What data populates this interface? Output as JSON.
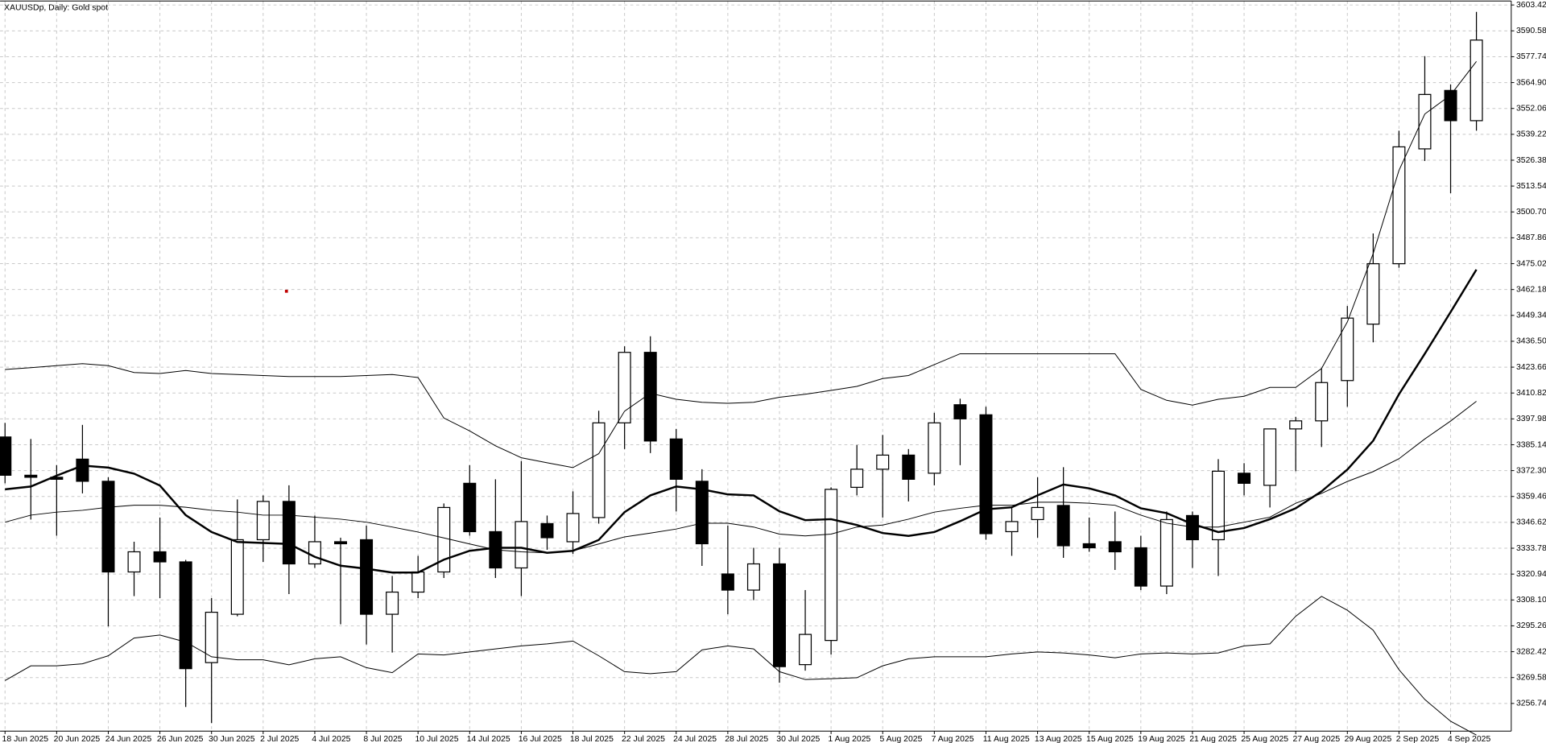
{
  "header": "XAUUSDp, Daily:  Gold spot",
  "chart_data": {
    "type": "candlestick",
    "categories": [
      "18 Jun 2025",
      null,
      "20 Jun 2025",
      null,
      "24 Jun 2025",
      null,
      "26 Jun 2025",
      null,
      "30 Jun 2025",
      null,
      "2 Jul 2025",
      null,
      "4 Jul 2025",
      null,
      "8 Jul 2025",
      null,
      "10 Jul 2025",
      null,
      "14 Jul 2025",
      null,
      "16 Jul 2025",
      null,
      "18 Jul 2025",
      null,
      "22 Jul 2025",
      null,
      "24 Jul 2025",
      null,
      "28 Jul 2025",
      null,
      "30 Jul 2025",
      null,
      "1 Aug 2025",
      null,
      "5 Aug 2025",
      null,
      "7 Aug 2025",
      null,
      "11 Aug 2025",
      null,
      "13 Aug 2025",
      null,
      "15 Aug 2025",
      null,
      "19 Aug 2025",
      null,
      "21 Aug 2025",
      null,
      "25 Aug 2025",
      null,
      "27 Aug 2025",
      null,
      "29 Aug 2025",
      null,
      "2 Sep 2025",
      null,
      "4 Sep 2025",
      null
    ],
    "open": [
      3389,
      3370,
      3369,
      3378,
      3367,
      3322,
      3332,
      3327,
      3277,
      3301,
      3338,
      3357,
      3326,
      3337,
      3338,
      3301,
      3312,
      3322,
      3366,
      3342,
      3324,
      3346,
      3337,
      3349,
      3396,
      3431,
      3388,
      3367,
      3321,
      3313,
      3326,
      3276,
      3288,
      3364,
      3373,
      3380,
      3371,
      3405,
      3400,
      3342,
      3348,
      3355,
      3336,
      3337,
      3334,
      3315,
      3350,
      3338,
      3371,
      3365,
      3393,
      3397,
      3417,
      3445,
      3475,
      3532,
      3561,
      3546
    ],
    "high": [
      3396,
      3388,
      3375,
      3395,
      3369,
      3337,
      3349,
      3328,
      3309,
      3358,
      3360,
      3365,
      3350,
      3339,
      3345,
      3320,
      3330,
      3356,
      3375,
      3368,
      3377,
      3350,
      3362,
      3402,
      3434,
      3439,
      3393,
      3373,
      3345,
      3334,
      3334,
      3313,
      3364,
      3385,
      3390,
      3383,
      3401,
      3408,
      3404,
      3354,
      3369,
      3374,
      3349,
      3352,
      3340,
      3352,
      3352,
      3378,
      3376,
      3393,
      3399,
      3423,
      3454,
      3490,
      3541,
      3578,
      3564,
      3600
    ],
    "low": [
      3366,
      3348,
      3340,
      3361,
      3295,
      3310,
      3309,
      3255,
      3247,
      3300,
      3327,
      3311,
      3324,
      3296,
      3286,
      3282,
      3309,
      3319,
      3340,
      3319,
      3310,
      3333,
      3331,
      3346,
      3383,
      3381,
      3352,
      3325,
      3301,
      3308,
      3267,
      3273,
      3281,
      3360,
      3349,
      3357,
      3365,
      3375,
      3338,
      3330,
      3339,
      3329,
      3332,
      3323,
      3313,
      3311,
      3324,
      3320,
      3360,
      3354,
      3372,
      3384,
      3404,
      3436,
      3473,
      3526,
      3510,
      3541
    ],
    "close": [
      3370,
      3369,
      3368,
      3367,
      3322,
      3332,
      3327,
      3274,
      3302,
      3338,
      3357,
      3326,
      3337,
      3336,
      3301,
      3312,
      3322,
      3354,
      3342,
      3324,
      3347,
      3339,
      3351,
      3396,
      3431,
      3387,
      3368,
      3336,
      3313,
      3326,
      3275,
      3291,
      3363,
      3373,
      3380,
      3368,
      3396,
      3398,
      3341,
      3347,
      3354,
      3335,
      3334,
      3332,
      3315,
      3348,
      3338,
      3372,
      3366,
      3393,
      3397,
      3416,
      3448,
      3475,
      3533,
      3559,
      3546,
      3586
    ],
    "up_color": "#ffffff",
    "down_color": "#000000",
    "outline_color": "#000000",
    "lines": [
      {
        "color": "#000000",
        "values": [
          3422.5,
          3423.4,
          3424.4,
          3425.4,
          3424.4,
          3421.0,
          3420.5,
          3422.0,
          3420.5,
          3420.0,
          3419.5,
          3419.0,
          3419.0,
          3419.0,
          3419.5,
          3420.0,
          3418.5,
          3398.4,
          3392.0,
          3384.6,
          3378.7,
          3376.2,
          3373.8,
          3380.7,
          3401.8,
          3410.7,
          3407.7,
          3406.2,
          3405.7,
          3406.2,
          3408.7,
          3410.2,
          3412.1,
          3414.1,
          3418.0,
          3419.5,
          3424.9,
          3430.3,
          3430.3,
          3430.3,
          3430.3,
          3430.3,
          3430.3,
          3430.3,
          3412.6,
          3407.2,
          3404.8,
          3407.7,
          3409.2,
          3413.6,
          3413.6,
          3423.0,
          3446.1,
          3480.0,
          3521.3,
          3549.3,
          3558.7,
          3575.4
        ]
      },
      {
        "color": "#000000",
        "values": [
          3346.7,
          3350.2,
          3351.7,
          3352.6,
          3354.1,
          3355.1,
          3355.1,
          3354.1,
          3352.6,
          3351.7,
          3350.2,
          3350.2,
          3349.2,
          3348.2,
          3346.7,
          3344.3,
          3341.8,
          3338.9,
          3335.9,
          3333.0,
          3332.0,
          3331.5,
          3332.5,
          3335.9,
          3339.4,
          3341.3,
          3343.3,
          3346.2,
          3346.2,
          3344.3,
          3340.8,
          3339.9,
          3340.8,
          3344.3,
          3345.3,
          3348.2,
          3351.7,
          3353.6,
          3355.1,
          3355.1,
          3356.6,
          3356.6,
          3356.1,
          3355.1,
          3350.2,
          3346.2,
          3344.3,
          3344.3,
          3346.7,
          3349.2,
          3356.1,
          3361.0,
          3366.9,
          3371.8,
          3378.2,
          3388.0,
          3396.9,
          3406.7
        ]
      },
      {
        "color": "#000000",
        "values": [
          3268.1,
          3275.4,
          3275.4,
          3276.4,
          3280.4,
          3289.2,
          3290.7,
          3287.2,
          3279.9,
          3278.4,
          3278.4,
          3275.9,
          3278.9,
          3279.9,
          3274.5,
          3272.0,
          3281.3,
          3280.8,
          3282.3,
          3283.8,
          3285.3,
          3286.3,
          3287.7,
          3280.4,
          3272.5,
          3271.5,
          3272.5,
          3283.3,
          3285.3,
          3283.8,
          3272.5,
          3268.6,
          3269.0,
          3269.5,
          3275.4,
          3278.9,
          3279.9,
          3279.9,
          3279.9,
          3281.3,
          3282.3,
          3281.8,
          3280.8,
          3279.4,
          3281.3,
          3281.8,
          3281.3,
          3281.8,
          3285.3,
          3286.3,
          3300.0,
          3309.9,
          3303.0,
          3293.1,
          3273.5,
          3258.7,
          3247.9,
          3241.0
        ]
      },
      {
        "color": "#000000",
        "bold": true,
        "values": [
          3363.0,
          3364.4,
          3369.8,
          3374.8,
          3373.8,
          3370.8,
          3364.9,
          3350.2,
          3341.8,
          3336.9,
          3336.4,
          3335.9,
          3329.5,
          3325.1,
          3323.6,
          3321.7,
          3321.7,
          3328.1,
          3332.5,
          3334.0,
          3334.0,
          3331.5,
          3332.5,
          3337.9,
          3351.7,
          3360.0,
          3364.4,
          3363.0,
          3360.5,
          3360.0,
          3352.1,
          3347.7,
          3348.2,
          3345.3,
          3341.3,
          3339.9,
          3341.8,
          3347.2,
          3353.1,
          3354.1,
          3360.0,
          3365.4,
          3363.5,
          3360.0,
          3353.6,
          3351.2,
          3345.8,
          3341.8,
          3343.8,
          3348.2,
          3353.6,
          3362.0,
          3372.8,
          3387.1,
          3410.2,
          3430.3,
          3451.0,
          3472.1
        ]
      }
    ],
    "ylim": [
      3243.0,
      3605.4
    ],
    "yticks": [
      3256.74,
      3269.58,
      3282.42,
      3295.26,
      {
        "value": 3308.1,
        "label": "3308.10"
      },
      3320.94,
      3333.78,
      3346.62,
      3359.46,
      {
        "value": 3372.3,
        "label": "3372.30"
      },
      3385.14,
      3397.98,
      3410.82,
      3423.66,
      {
        "value": 3436.5,
        "label": "3436.50"
      },
      3449.34,
      3462.18,
      3475.02,
      3487.86,
      {
        "value": 3500.7,
        "label": "3500.70"
      },
      3513.54,
      3526.38,
      3539.22,
      3552.06,
      {
        "value": 3564.9,
        "label": "3564.90"
      },
      3577.74,
      3590.58,
      3603.42
    ],
    "grid": true
  }
}
